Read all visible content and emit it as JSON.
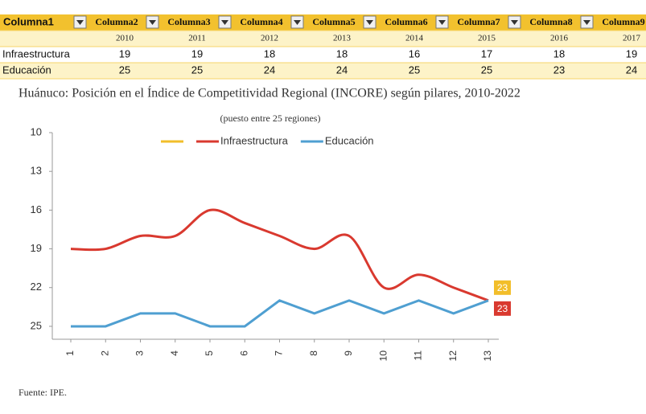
{
  "table": {
    "header": [
      "Columna1",
      "Columna2",
      "Columna3",
      "Columna4",
      "Columna5",
      "Columna6",
      "Columna7",
      "Columna8",
      "Columna9"
    ],
    "years": [
      2010,
      2011,
      2012,
      2013,
      2014,
      2015,
      2016,
      2017
    ],
    "rows": [
      [
        "Infraestructura",
        19,
        19,
        18,
        18,
        16,
        17,
        18,
        19
      ],
      [
        "Educación",
        25,
        25,
        24,
        24,
        25,
        25,
        23,
        24
      ]
    ]
  },
  "chart_data": {
    "type": "line",
    "title": "Huánuco: Posición en el Índice de Competitividad Regional (INCORE) según pilares, 2010-2022",
    "subtitle": "(puesto entre 25 regiones)",
    "categories": [
      "1",
      "2",
      "3",
      "4",
      "5",
      "6",
      "7",
      "8",
      "9",
      "10",
      "11",
      "12",
      "13"
    ],
    "series": [
      {
        "name": null,
        "color": "#f2be2a",
        "values": [
          null,
          null,
          null,
          null,
          null,
          null,
          null,
          null,
          null,
          null,
          null,
          null,
          23
        ]
      },
      {
        "name": "Infraestructura",
        "color": "#d9392f",
        "smooth": true,
        "values": [
          19,
          19,
          18,
          18,
          16,
          17,
          18,
          19,
          18,
          22,
          21,
          22,
          23
        ]
      },
      {
        "name": "Educación",
        "color": "#4f9fd1",
        "smooth": false,
        "values": [
          25,
          25,
          24,
          24,
          25,
          25,
          23,
          24,
          23,
          24,
          23,
          24,
          23
        ]
      }
    ],
    "ylim": [
      10,
      26
    ],
    "yticks": [
      10,
      13,
      16,
      19,
      22,
      25
    ],
    "y_inverted": true,
    "grid": false,
    "legend": "top",
    "label_last": true
  },
  "source": "Fuente: IPE."
}
